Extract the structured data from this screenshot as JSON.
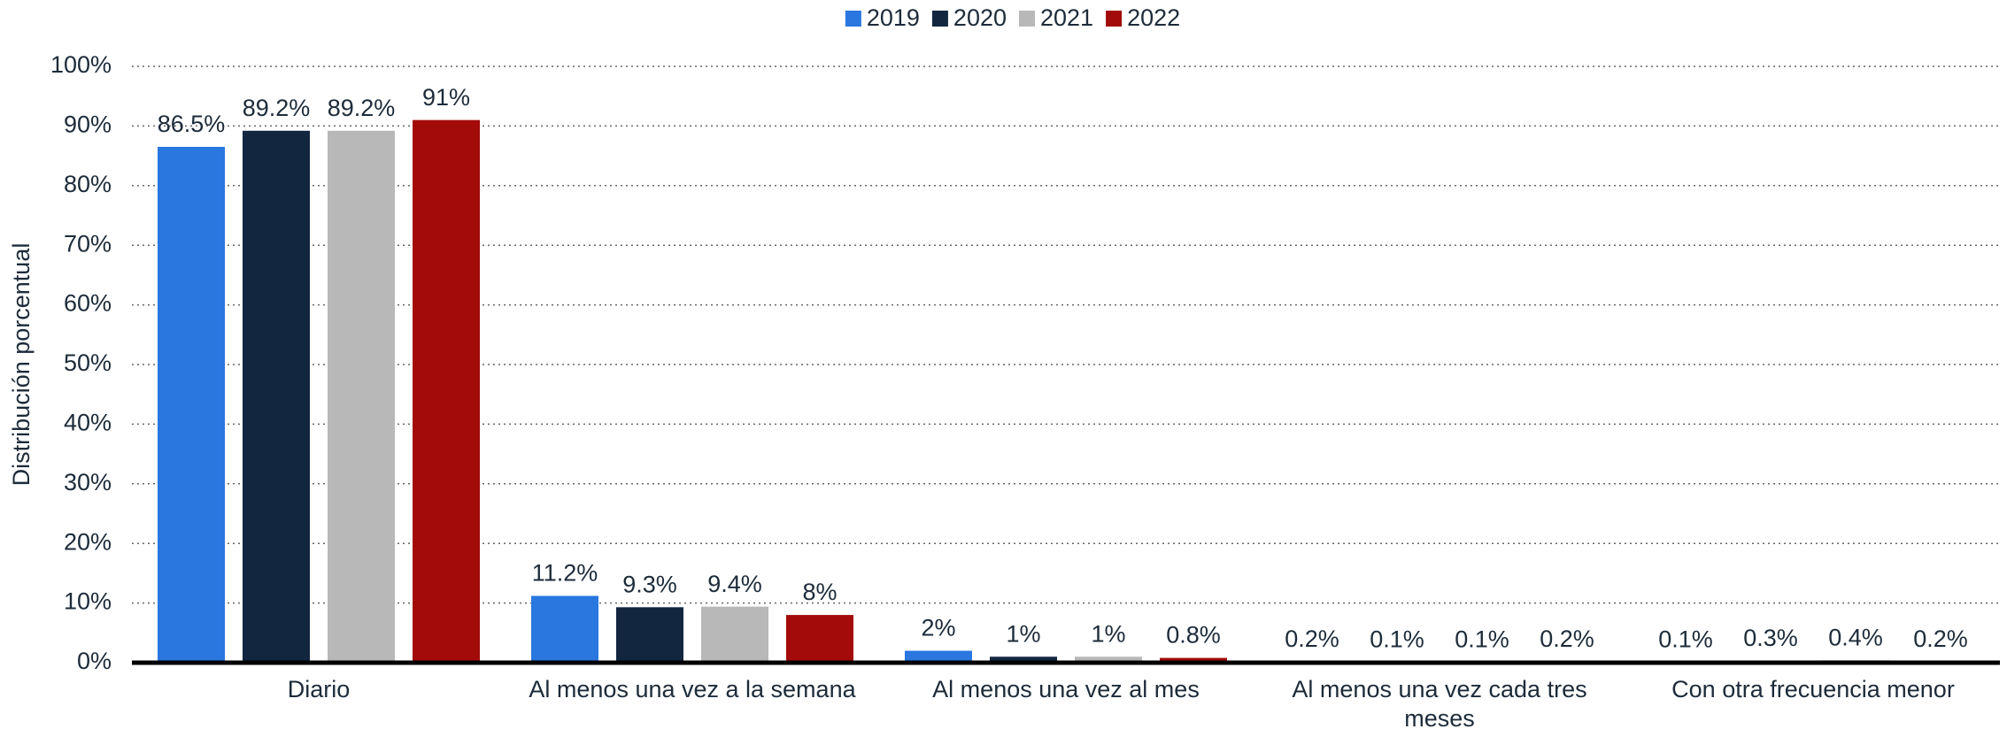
{
  "chart_data": {
    "type": "bar",
    "y_label": "Distribución porcentual",
    "categories": [
      "Diario",
      "Al menos una vez a la semana",
      "Al menos una vez al mes",
      "Al menos una vez cada tres meses",
      "Con otra frecuencia menor"
    ],
    "series": [
      {
        "name": "2019",
        "color": "#2a77e0",
        "values": [
          86.5,
          11.2,
          2,
          0.2,
          0.1
        ],
        "value_labels": [
          "86.5%",
          "11.2%",
          "2%",
          "0.2%",
          "0.1%"
        ]
      },
      {
        "name": "2020",
        "color": "#12263f",
        "values": [
          89.2,
          9.3,
          1,
          0.1,
          0.3
        ],
        "value_labels": [
          "89.2%",
          "9.3%",
          "1%",
          "0.1%",
          "0.3%"
        ]
      },
      {
        "name": "2021",
        "color": "#b8b8b8",
        "values": [
          89.2,
          9.4,
          1,
          0.1,
          0.4
        ],
        "value_labels": [
          "89.2%",
          "9.4%",
          "1%",
          "0.1%",
          "0.4%"
        ]
      },
      {
        "name": "2022",
        "color": "#a30b0b",
        "values": [
          91,
          8,
          0.8,
          0.2,
          0.2
        ],
        "value_labels": [
          "91%",
          "8%",
          "0.8%",
          "0.2%",
          "0.2%"
        ]
      }
    ],
    "ylim": [
      0,
      100
    ],
    "yticks": [
      {
        "value": 0,
        "label": "0%"
      },
      {
        "value": 10,
        "label": "10%"
      },
      {
        "value": 20,
        "label": "20%"
      },
      {
        "value": 30,
        "label": "30%"
      },
      {
        "value": 40,
        "label": "40%"
      },
      {
        "value": 50,
        "label": "50%"
      },
      {
        "value": 60,
        "label": "60%"
      },
      {
        "value": 70,
        "label": "70%"
      },
      {
        "value": 80,
        "label": "80%"
      },
      {
        "value": 90,
        "label": "90%"
      },
      {
        "value": 100,
        "label": "100%"
      }
    ],
    "grid": true,
    "legend": "top"
  }
}
